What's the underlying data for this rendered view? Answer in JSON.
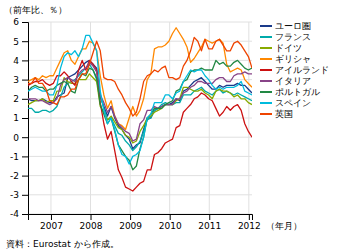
{
  "chart_data": {
    "type": "line",
    "xlabel": "（年月）",
    "ylabel": "（前年比、％）",
    "annotations": [
      "資料：Eurostat から作成。"
    ],
    "xlim": [
      2006.42,
      2012.08
    ],
    "xticks": [
      2007,
      2008,
      2009,
      2010,
      2011,
      2012
    ],
    "ylim": [
      -4,
      6
    ],
    "yticks": [
      -4,
      -3,
      -2,
      -1,
      0,
      1,
      2,
      3,
      4,
      5,
      6
    ],
    "grid": true,
    "legend": "right",
    "x": [
      2006.42,
      2006.5113,
      2006.6026,
      2006.6939,
      2006.7852,
      2006.8765,
      2006.9677,
      2007.059,
      2007.1503,
      2007.2416,
      2007.3329,
      2007.4242,
      2007.5155,
      2007.6068,
      2007.6981,
      2007.7894,
      2007.8806,
      2007.9719,
      2008.0632,
      2008.1545,
      2008.2458,
      2008.3371,
      2008.4284,
      2008.5197,
      2008.611,
      2008.7023,
      2008.7935,
      2008.8848,
      2008.9761,
      2009.0674,
      2009.1587,
      2009.25,
      2009.3413,
      2009.4326,
      2009.5239,
      2009.6152,
      2009.7065,
      2009.7977,
      2009.889,
      2009.9803,
      2010.0716,
      2010.1629,
      2010.2542,
      2010.3455,
      2010.4368,
      2010.5281,
      2010.6194,
      2010.7106,
      2010.8019,
      2010.8932,
      2010.9845,
      2011.0758,
      2011.1671,
      2011.2584,
      2011.3497,
      2011.441,
      2011.5323,
      2011.6235,
      2011.7148,
      2011.8061,
      2011.8974,
      2011.9887,
      2012.08
    ],
    "series": [
      {
        "name": "ユーロ圏",
        "color": "#1a3a8a",
        "values": [
          2.0,
          1.9,
          1.9,
          1.9,
          2.0,
          1.9,
          1.8,
          1.8,
          2.1,
          2.2,
          2.3,
          3.1,
          3.2,
          3.3,
          3.5,
          3.7,
          3.9,
          4.0,
          3.8,
          3.6,
          2.1,
          1.6,
          1.1,
          1.6,
          1.0,
          0.6,
          0.4,
          0.1,
          -0.1,
          -0.6,
          -0.4,
          -0.3,
          0.4,
          1.0,
          1.0,
          1.4,
          1.5,
          1.6,
          1.7,
          1.7,
          1.8,
          2.0,
          1.9,
          2.4,
          2.5,
          2.7,
          2.9,
          3.0,
          3.1,
          2.9,
          2.7,
          2.5,
          2.5,
          2.7,
          2.6,
          2.7,
          2.7,
          2.7,
          2.8,
          2.7,
          2.7,
          2.5,
          2.3
        ]
      },
      {
        "name": "フランス",
        "color": "#00aaaa",
        "values": [
          1.5,
          1.5,
          1.3,
          1.3,
          1.4,
          1.4,
          1.3,
          1.4,
          1.6,
          2.1,
          2.6,
          2.8,
          2.9,
          3.0,
          3.2,
          3.4,
          3.6,
          3.8,
          3.5,
          3.0,
          2.2,
          1.5,
          0.9,
          1.0,
          0.6,
          0.2,
          0.1,
          -0.2,
          -0.4,
          -0.7,
          -0.5,
          -0.2,
          0.3,
          0.9,
          1.0,
          1.4,
          1.5,
          1.7,
          1.8,
          1.7,
          1.7,
          1.8,
          1.8,
          2.2,
          2.2,
          2.2,
          2.4,
          2.5,
          2.6,
          2.4,
          2.3,
          2.2,
          2.4,
          2.5,
          2.3,
          2.4,
          2.3,
          2.2,
          2.3,
          2.2,
          2.1,
          2.0,
          1.9
        ]
      },
      {
        "name": "ドイツ",
        "color": "#88aa00",
        "values": [
          1.7,
          1.8,
          1.9,
          1.9,
          2.0,
          1.8,
          1.9,
          1.9,
          2.4,
          2.4,
          3.1,
          2.9,
          2.8,
          2.8,
          3.0,
          3.0,
          3.0,
          3.3,
          3.1,
          2.9,
          1.6,
          1.3,
          0.9,
          1.1,
          0.8,
          0.5,
          0.4,
          0.1,
          0.0,
          -0.3,
          -0.2,
          0.3,
          0.6,
          1.0,
          1.1,
          1.3,
          1.4,
          1.5,
          1.7,
          1.7,
          1.7,
          1.9,
          2.0,
          2.6,
          2.6,
          2.5,
          2.4,
          2.4,
          2.5,
          2.3,
          2.2,
          2.0,
          2.4,
          2.5,
          2.4,
          2.4,
          2.3,
          2.1,
          2.2,
          2.0,
          2.0,
          1.8,
          1.7
        ]
      },
      {
        "name": "ギリシャ",
        "color": "#ff8800",
        "values": [
          2.9,
          3.0,
          3.1,
          3.0,
          3.2,
          3.1,
          3.2,
          3.2,
          3.6,
          4.0,
          4.4,
          4.5,
          4.0,
          3.8,
          4.2,
          4.6,
          4.6,
          5.0,
          4.9,
          4.5,
          3.2,
          2.2,
          1.5,
          1.9,
          1.1,
          0.7,
          0.6,
          0.4,
          1.0,
          1.6,
          1.1,
          1.4,
          2.0,
          3.0,
          3.3,
          4.6,
          4.7,
          4.7,
          4.8,
          5.0,
          5.4,
          5.7,
          5.4,
          5.1,
          4.7,
          3.9,
          4.1,
          4.4,
          4.7,
          5.1,
          5.0,
          4.9,
          5.0,
          5.1,
          4.9,
          3.8,
          3.4,
          3.5,
          3.6,
          3.5,
          3.0,
          2.8,
          2.6
        ]
      },
      {
        "name": "アイルランド",
        "color": "#cc1111",
        "values": [
          2.7,
          2.8,
          2.9,
          2.9,
          3.0,
          2.8,
          2.7,
          2.8,
          3.2,
          3.2,
          3.4,
          3.2,
          2.9,
          2.7,
          3.5,
          4.0,
          3.5,
          4.0,
          3.8,
          3.5,
          1.8,
          0.7,
          -0.1,
          0.3,
          -0.7,
          -1.7,
          -2.1,
          -2.6,
          -2.7,
          -2.8,
          -2.6,
          -2.4,
          -2.3,
          -1.7,
          -1.7,
          -0.9,
          -0.8,
          -0.6,
          -0.3,
          -0.2,
          -0.1,
          0.5,
          0.6,
          1.3,
          1.5,
          1.7,
          2.0,
          2.1,
          2.3,
          2.2,
          2.0,
          1.9,
          1.5,
          1.1,
          1.3,
          1.6,
          1.4,
          1.6,
          1.7,
          1.4,
          0.7,
          0.3,
          0.0
        ]
      },
      {
        "name": "イタリア",
        "color": "#884488",
        "values": [
          2.0,
          2.0,
          2.0,
          1.9,
          1.9,
          1.8,
          1.7,
          1.8,
          2.0,
          2.7,
          3.0,
          3.1,
          3.0,
          2.9,
          3.3,
          3.5,
          3.6,
          3.9,
          3.7,
          3.4,
          2.2,
          1.8,
          1.3,
          1.6,
          1.1,
          0.7,
          0.5,
          0.3,
          0.2,
          -0.2,
          -0.1,
          0.7,
          0.9,
          1.4,
          1.4,
          1.6,
          1.5,
          1.6,
          1.7,
          1.7,
          1.7,
          2.0,
          2.0,
          2.3,
          2.4,
          2.6,
          2.7,
          2.9,
          2.9,
          2.8,
          2.8,
          2.8,
          3.0,
          3.1,
          3.1,
          2.9,
          2.9,
          3.2,
          3.3,
          3.3,
          3.4,
          3.3,
          3.3
        ]
      },
      {
        "name": "ポルトガル",
        "color": "#228844",
        "values": [
          2.4,
          2.6,
          2.7,
          2.6,
          2.6,
          2.4,
          2.5,
          2.5,
          2.7,
          2.8,
          2.9,
          2.8,
          2.4,
          2.3,
          3.0,
          3.3,
          3.2,
          3.6,
          3.5,
          3.1,
          1.7,
          1.2,
          0.7,
          1.0,
          0.3,
          -0.4,
          -0.7,
          -1.0,
          -1.2,
          -1.7,
          -1.5,
          -0.6,
          0.0,
          1.0,
          1.2,
          1.5,
          1.5,
          1.5,
          1.7,
          1.8,
          1.9,
          2.4,
          2.5,
          2.9,
          3.0,
          3.4,
          3.5,
          3.5,
          3.6,
          3.5,
          3.5,
          3.5,
          4.0,
          3.8,
          3.9,
          3.7,
          3.7,
          3.9,
          4.0,
          3.8,
          3.6,
          3.5,
          3.6
        ]
      },
      {
        "name": "スペイン",
        "color": "#00bbdd",
        "values": [
          2.4,
          2.5,
          2.6,
          2.5,
          2.4,
          2.4,
          2.2,
          2.2,
          2.7,
          3.6,
          4.2,
          4.4,
          4.3,
          4.5,
          4.2,
          4.6,
          5.3,
          5.3,
          4.9,
          4.5,
          2.4,
          1.4,
          0.7,
          1.0,
          0.4,
          -0.4,
          -0.9,
          -1.0,
          -1.4,
          -1.0,
          -0.9,
          -0.7,
          0.0,
          1.0,
          1.2,
          1.8,
          1.8,
          1.8,
          2.2,
          2.2,
          2.0,
          2.3,
          2.4,
          2.9,
          3.2,
          3.5,
          3.4,
          3.5,
          3.5,
          3.2,
          3.0,
          2.7,
          2.5,
          2.6,
          2.5,
          2.6,
          2.6,
          2.6,
          2.7,
          2.9,
          2.4,
          2.3,
          2.2
        ]
      },
      {
        "name": "英国",
        "color": "#ee4400",
        "values": [
          2.8,
          2.8,
          3.1,
          2.8,
          2.8,
          2.5,
          1.9,
          1.8,
          1.7,
          2.1,
          2.1,
          2.2,
          2.5,
          2.5,
          3.0,
          3.3,
          3.3,
          3.8,
          4.4,
          5.0,
          4.5,
          3.1,
          3.0,
          3.0,
          2.9,
          2.5,
          2.2,
          1.8,
          1.5,
          1.1,
          1.3,
          2.0,
          2.9,
          3.2,
          3.3,
          3.5,
          3.4,
          3.6,
          3.7,
          3.1,
          3.1,
          3.0,
          3.1,
          3.7,
          4.0,
          4.5,
          5.2,
          5.0,
          4.5,
          5.1,
          4.6,
          4.6,
          5.0,
          5.1,
          4.8,
          4.5,
          4.5,
          4.9,
          5.0,
          4.8,
          4.5,
          4.2,
          3.6
        ]
      }
    ]
  }
}
